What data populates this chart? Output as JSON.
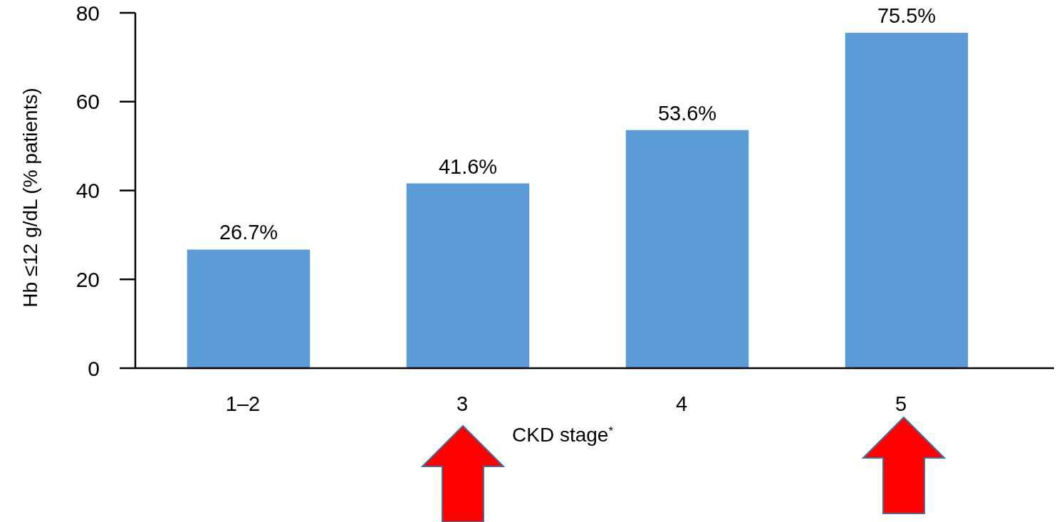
{
  "chart_data": {
    "type": "bar",
    "xlabel": "CKD stage$^{*}$",
    "ylabel": "Hb ≤12 g/dL (% patients)",
    "categories": [
      "1–2",
      "3",
      "4",
      "5"
    ],
    "values": [
      26.7,
      41.6,
      53.6,
      75.5
    ],
    "value_labels": [
      "26.7%",
      "41.6%",
      "53.6%",
      "75.5%"
    ],
    "color": "#5b9bd5",
    "ylim": [
      0,
      80
    ],
    "yticks": [
      0,
      20,
      40,
      60,
      80
    ],
    "grid": false
  }
}
